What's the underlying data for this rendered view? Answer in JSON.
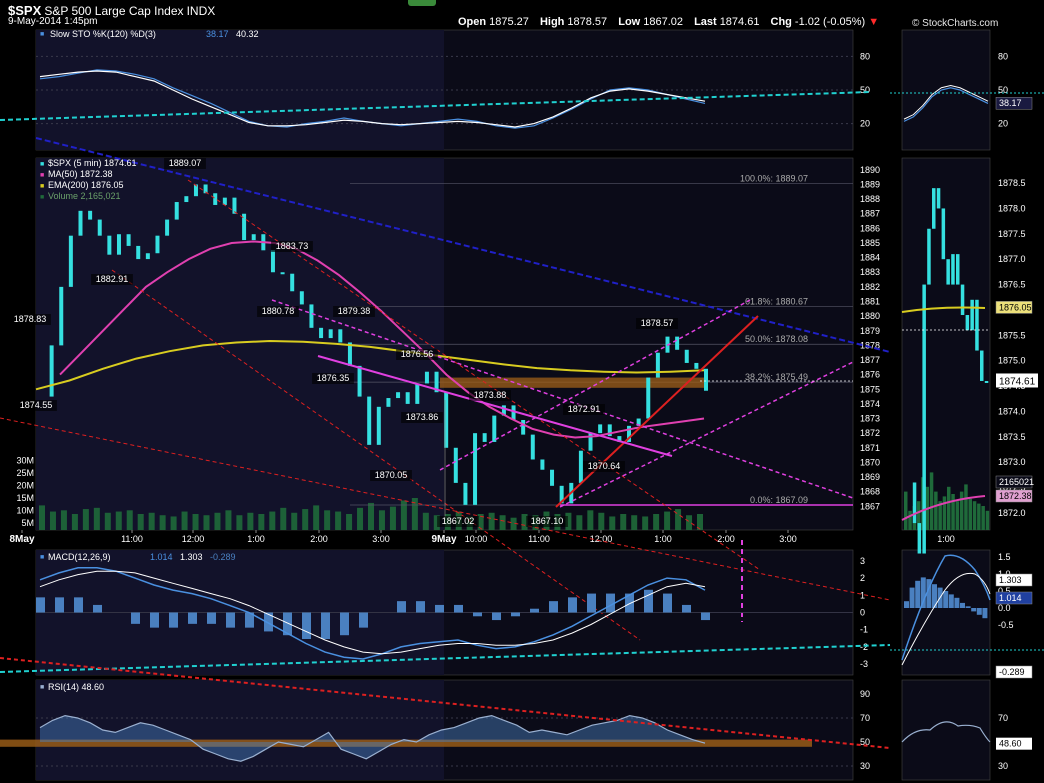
{
  "header": {
    "symbol": "$SPX",
    "name": "S&P 500 Large Cap Index",
    "exchange": "INDX",
    "date": "9-May-2014 1:45pm",
    "quote": [
      {
        "label": "Open",
        "value": "1875.27"
      },
      {
        "label": "High",
        "value": "1878.57"
      },
      {
        "label": "Low",
        "value": "1867.02"
      },
      {
        "label": "Last",
        "value": "1874.61"
      },
      {
        "label": "Chg",
        "value": "-1.02 (-0.05%)"
      }
    ],
    "down_arrow": "▼",
    "credit": "© StockCharts.com"
  },
  "colors": {
    "background": "#000000",
    "panel": "#0b0b18",
    "shade": "#12122a",
    "price": "#35e0e0",
    "ma50": "#e040b0",
    "ema200": "#d8cc20",
    "volume": "#1f6a3a",
    "trend_blue": "#2020c8",
    "trend_red": "#dd2020",
    "trend_magenta": "#e040e0",
    "trend_cyan": "#20d0d0",
    "stoch_k": "#4a90e0",
    "macd_hist": "#4a80c0",
    "resistance_band": "#a06018"
  },
  "chart_data": [
    {
      "type": "line",
      "panel": "Slow Stochastic",
      "label": "Slow STO %K(120) %D(3)",
      "values_label": [
        "38.17",
        "40.32"
      ],
      "y_ticks": [
        "80",
        "50",
        "20"
      ],
      "ylim": [
        0,
        100
      ],
      "series": [
        {
          "name": "%K",
          "values": [
            60,
            62,
            65,
            68,
            67,
            64,
            60,
            52,
            45,
            38,
            30,
            22,
            18,
            17,
            20,
            22,
            25,
            22,
            20,
            18,
            20,
            22,
            24,
            22,
            18,
            16,
            18,
            25,
            33,
            42,
            50,
            52,
            50,
            46,
            42,
            38
          ]
        },
        {
          "name": "%D",
          "values": [
            62,
            64,
            66,
            67,
            66,
            62,
            58,
            50,
            42,
            35,
            28,
            21,
            18,
            18,
            19,
            21,
            23,
            22,
            20,
            19,
            20,
            21,
            22,
            21,
            19,
            17,
            20,
            26,
            34,
            43,
            49,
            51,
            49,
            46,
            43,
            40
          ]
        }
      ],
      "right_labels": [
        "38.17"
      ]
    },
    {
      "type": "line",
      "panel": "Price",
      "label": "$SPX (5 min) 1874.61",
      "legend": [
        {
          "name": "$SPX (5 min)",
          "value": "1874.61"
        },
        {
          "name": "MA(50)",
          "value": "1872.38"
        },
        {
          "name": "EMA(200)",
          "value": "1876.05"
        },
        {
          "name": "Volume",
          "value": "2,165,021"
        }
      ],
      "ylim": [
        1866.2,
        1890.4
      ],
      "y_ticks": [
        "1890",
        "1889",
        "1888",
        "1887",
        "1886",
        "1885",
        "1884",
        "1883",
        "1882",
        "1881",
        "1880",
        "1879",
        "1878",
        "1877",
        "1876",
        "1875",
        "1874",
        "1873",
        "1872",
        "1871",
        "1870",
        "1869",
        "1868",
        "1867"
      ],
      "x_ticks": [
        "8May",
        "11:00",
        "12:00",
        "1:00",
        "2:00",
        "3:00",
        "9May",
        "10:00",
        "11:00",
        "12:00",
        "1:00",
        "2:00",
        "3:00"
      ],
      "price": [
        1874.5,
        1878.0,
        1882.0,
        1885.5,
        1887.2,
        1886.6,
        1885.5,
        1884.2,
        1885.6,
        1884.8,
        1883.9,
        1884.3,
        1885.5,
        1886.6,
        1887.8,
        1888.2,
        1889.0,
        1888.4,
        1887.6,
        1888.1,
        1887.0,
        1885.2,
        1885.6,
        1884.5,
        1883.0,
        1882.9,
        1881.7,
        1880.8,
        1879.2,
        1878.5,
        1879.1,
        1878.2,
        1876.6,
        1874.5,
        1871.2,
        1873.8,
        1874.4,
        1874.8,
        1874.0,
        1875.4,
        1876.2,
        1874.8,
        1871.0,
        1868.6,
        1867.1,
        1872.0,
        1871.4,
        1873.2,
        1873.9,
        1872.9,
        1871.9,
        1870.2,
        1869.5,
        1868.4,
        1867.2,
        1868.6,
        1870.8,
        1872.0,
        1872.6,
        1871.8,
        1871.4,
        1872.5,
        1873.0,
        1875.8,
        1877.5,
        1878.6,
        1877.7,
        1876.8,
        1876.4,
        1874.9
      ],
      "ma50": [
        1876,
        1877.5,
        1879,
        1880.5,
        1882,
        1883,
        1883.9,
        1884.6,
        1885,
        1885.1,
        1885,
        1884.6,
        1883.8,
        1882.8,
        1881.6,
        1880.3,
        1878.9,
        1877.5,
        1876,
        1874.8,
        1873.8,
        1873.0,
        1872.3,
        1871.9,
        1871.7,
        1871.8,
        1872.1,
        1872.4,
        1872.6,
        1872.8,
        1873.0
      ],
      "ema200": [
        1875,
        1875.6,
        1876.4,
        1877.1,
        1877.6,
        1878.0,
        1878.2,
        1878.3,
        1878.25,
        1878.1,
        1877.9,
        1877.6,
        1877.3,
        1877.0,
        1876.7,
        1876.45,
        1876.3,
        1876.2,
        1876.15,
        1876.2,
        1876.3
      ],
      "volume": [
        2.0,
        1.5,
        1.6,
        1.3,
        1.7,
        1.8,
        1.4,
        1.5,
        1.6,
        1.3,
        1.4,
        1.2,
        1.1,
        1.5,
        1.3,
        1.2,
        1.4,
        1.6,
        1.2,
        1.4,
        1.3,
        1.5,
        1.8,
        1.4,
        1.7,
        2.0,
        1.6,
        1.5,
        1.3,
        1.8,
        2.2,
        1.6,
        1.9,
        2.4,
        2.6,
        1.4,
        1.2,
        1.3,
        1.5,
        1.1,
        1.3,
        1.4,
        1.2,
        1.0,
        1.3,
        1.2,
        1.5,
        1.3,
        1.4,
        1.2,
        1.6,
        1.4,
        1.1,
        1.3,
        1.2,
        1.1,
        1.3,
        1.5,
        1.7,
        1.2,
        1.3
      ],
      "fib_levels": [
        {
          "label": "100.0%: 1889.07",
          "value": 1889.07
        },
        {
          "label": "61.8%: 1880.67",
          "value": 1880.67
        },
        {
          "label": "50.0%: 1878.08",
          "value": 1878.08
        },
        {
          "label": "38.2%: 1875.49",
          "value": 1875.49
        },
        {
          "label": "0.0%: 1867.09",
          "value": 1867.09
        }
      ],
      "annotations": [
        "1889.07",
        "1883.73",
        "1882.91",
        "1880.78",
        "1879.38",
        "1878.83",
        "1876.56",
        "1876.35",
        "1874.55",
        "1873.88",
        "1873.86",
        "1872.91",
        "1870.64",
        "1870.05",
        "1878.57",
        "1867.02",
        "1867.10"
      ],
      "volume_ticks": [
        "30M",
        "25M",
        "20M",
        "15M",
        "10M",
        "5M"
      ],
      "right_labels": [
        "1876.05",
        "1874.61",
        "2165021",
        "1872.38"
      ],
      "mini_y_ticks": [
        "1878.5",
        "1878.0",
        "1877.5",
        "1877.0",
        "1876.5",
        "1876.0",
        "1875.5",
        "1875.0",
        "1874.5",
        "1874.0",
        "1873.5",
        "1873.0",
        "1872.5",
        "1872.0"
      ],
      "mini_x_tick": "1:00"
    },
    {
      "type": "line",
      "panel": "MACD",
      "label": "MACD(12,26,9)",
      "values_label": [
        "1.014",
        "1.303",
        "-0.289"
      ],
      "y_ticks": [
        "3",
        "2",
        "1",
        "0",
        "-1",
        "-2",
        "-3"
      ],
      "ylim": [
        -3.4,
        3.4
      ],
      "series": [
        {
          "name": "MACD",
          "values": [
            1.9,
            2.3,
            2.6,
            2.6,
            2.4,
            2.0,
            1.6,
            1.3,
            1.1,
            0.8,
            0.4,
            0.0,
            -0.6,
            -1.2,
            -1.8,
            -2.3,
            -2.6,
            -2.7,
            -2.4,
            -2.0,
            -1.8,
            -1.7,
            -1.6,
            -1.9,
            -2.1,
            -2.0,
            -1.7,
            -1.3,
            -0.8,
            -0.2,
            0.4,
            1.0,
            1.6,
            2.0,
            1.9,
            1.3
          ]
        },
        {
          "name": "Signal",
          "values": [
            1.5,
            1.9,
            2.2,
            2.4,
            2.4,
            2.3,
            2.0,
            1.7,
            1.4,
            1.1,
            0.8,
            0.4,
            -0.1,
            -0.6,
            -1.1,
            -1.6,
            -2.0,
            -2.3,
            -2.4,
            -2.3,
            -2.1,
            -1.9,
            -1.8,
            -1.8,
            -1.9,
            -1.9,
            -1.8,
            -1.6,
            -1.2,
            -0.7,
            -0.1,
            0.5,
            1.0,
            1.5,
            1.7,
            1.5
          ]
        }
      ],
      "mini_y_ticks": [
        "1.5",
        "1.0",
        "0.5",
        "0.0",
        "-0.5"
      ],
      "right_labels": [
        "1.303",
        "1.014",
        "-0.289"
      ]
    },
    {
      "type": "line",
      "panel": "RSI",
      "label": "RSI(14)",
      "values_label": [
        "48.60"
      ],
      "y_ticks": [
        "90",
        "70",
        "50",
        "30"
      ],
      "ylim": [
        20,
        100
      ],
      "series": [
        {
          "name": "RSI",
          "values": [
            62,
            68,
            72,
            70,
            66,
            60,
            58,
            62,
            66,
            64,
            60,
            56,
            52,
            44,
            40,
            36,
            34,
            38,
            44,
            50,
            48,
            46,
            52,
            58,
            44,
            40,
            36,
            42,
            48,
            52,
            50,
            56,
            60,
            62,
            66,
            70,
            72,
            68,
            64,
            58,
            60,
            58,
            56,
            60,
            64,
            66,
            68,
            72,
            70,
            66,
            60,
            56,
            52,
            49
          ]
        }
      ],
      "mini_y_ticks": [
        "70",
        "50",
        "30"
      ],
      "right_labels": [
        "48.60"
      ]
    }
  ]
}
